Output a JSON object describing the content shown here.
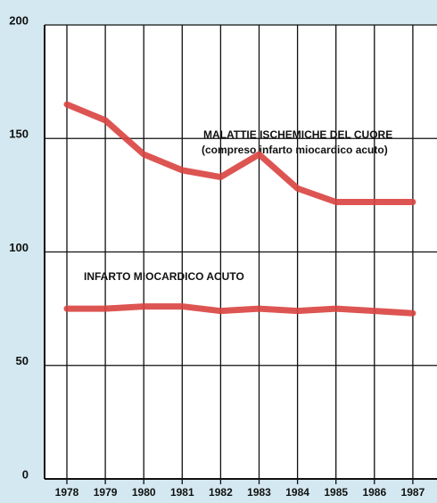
{
  "chart_data": {
    "type": "line",
    "categories": [
      "1978",
      "1979",
      "1980",
      "1981",
      "1982",
      "1983",
      "1984",
      "1985",
      "1986",
      "1987"
    ],
    "series": [
      {
        "name": "MALATTIE ISCHEMICHE DEL CUORE",
        "subname": "(compreso infarto miocardico acuto)",
        "color": "#d9423f",
        "values": [
          165,
          158,
          143,
          136,
          133,
          143,
          128,
          122,
          122,
          122
        ]
      },
      {
        "name": "INFARTO MIOCARDICO ACUTO",
        "color": "#d9423f",
        "values": [
          75,
          75,
          76,
          76,
          74,
          75,
          74,
          75,
          74,
          73
        ]
      }
    ],
    "ylim": [
      0,
      200
    ],
    "yticks": [
      0,
      50,
      100,
      150,
      200
    ],
    "grid": true
  }
}
